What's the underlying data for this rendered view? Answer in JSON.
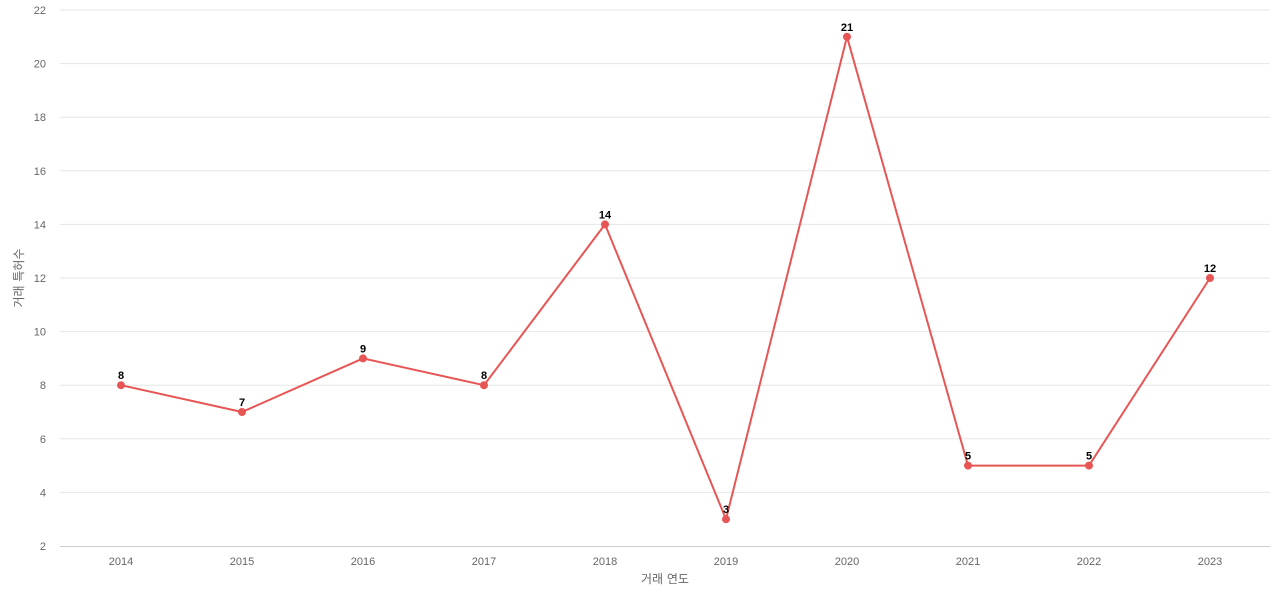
{
  "chart_data": {
    "type": "line",
    "title": "",
    "xlabel": "거래 연도",
    "ylabel": "거래 특허수",
    "categories": [
      "2014",
      "2015",
      "2016",
      "2017",
      "2018",
      "2019",
      "2020",
      "2021",
      "2022",
      "2023"
    ],
    "series": [
      {
        "values": [
          8,
          7,
          9,
          8,
          14,
          3,
          21,
          5,
          5,
          12
        ],
        "color": "#e85555"
      }
    ],
    "ylim": [
      2,
      22
    ],
    "yticks": [
      "2",
      "4",
      "6",
      "8",
      "10",
      "12",
      "14",
      "16",
      "18",
      "20",
      "22"
    ],
    "data_labels": true,
    "grid": true,
    "legend": "none"
  }
}
